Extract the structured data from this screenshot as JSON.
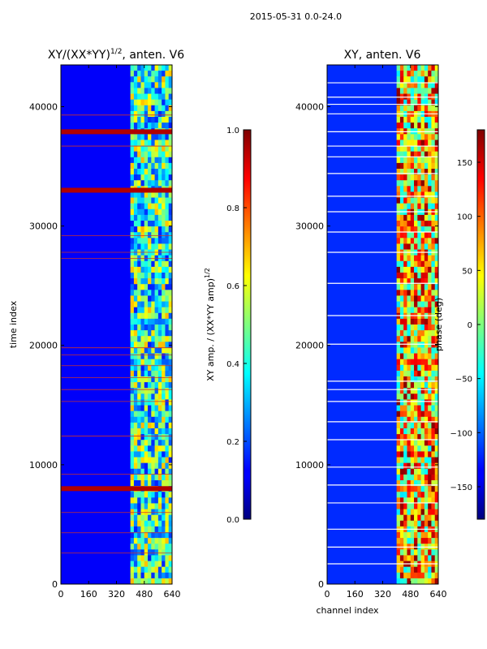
{
  "figure": {
    "suptitle": "2015-05-31 0.0-24.0"
  },
  "chart_data": [
    {
      "type": "heatmap",
      "title_main": "XY/(XX*YY)",
      "title_sup": "1/2",
      "title_tail": ", anten. V6",
      "ylabel": "time index",
      "xlabel": "",
      "xlim": [
        0,
        640
      ],
      "ylim": [
        0,
        43500
      ],
      "xticks": [
        "0",
        "160",
        "320",
        "480",
        "640"
      ],
      "xtick_values": [
        0,
        160,
        320,
        480,
        640
      ],
      "yticks": [
        "0",
        "10000",
        "20000",
        "30000",
        "40000"
      ],
      "ytick_values": [
        0,
        10000,
        20000,
        30000,
        40000
      ],
      "colormap": "jet",
      "colorbar": {
        "label_main": "XY amp. / (XX*YY amp)",
        "label_sup": "1/2",
        "range": [
          0,
          1
        ],
        "ticks": [
          "0.0",
          "0.2",
          "0.4",
          "0.6",
          "0.8",
          "1.0"
        ],
        "tick_values": [
          0,
          0.2,
          0.4,
          0.6,
          0.8,
          1.0
        ]
      },
      "background_value": 0.12,
      "bright_channel_range": [
        400,
        640
      ],
      "flagged_rows": [
        37900,
        33000,
        8000
      ],
      "thin_lines": [
        39300,
        36700,
        29200,
        27800,
        27300,
        19800,
        19200,
        18300,
        17300,
        16300,
        15300,
        12400,
        9200,
        6000,
        4300,
        2600
      ]
    },
    {
      "type": "heatmap",
      "title": "XY, anten. V6",
      "ylabel": "",
      "xlabel": "channel index",
      "xlim": [
        0,
        640
      ],
      "ylim": [
        0,
        43500
      ],
      "xticks": [
        "0",
        "160",
        "320",
        "480",
        "640"
      ],
      "xtick_values": [
        0,
        160,
        320,
        480,
        640
      ],
      "yticks": [
        "0",
        "10000",
        "20000",
        "30000",
        "40000"
      ],
      "ytick_values": [
        0,
        10000,
        20000,
        30000,
        40000
      ],
      "colormap": "jet",
      "colorbar": {
        "label": "phase (deg)",
        "range": [
          -180,
          180
        ],
        "ticks": [
          "−150",
          "−100",
          "−50",
          "0",
          "50",
          "100",
          "150"
        ],
        "tick_values": [
          -150,
          -100,
          -50,
          0,
          50,
          100,
          150
        ]
      },
      "background_value": -120,
      "bright_channel_range": [
        400,
        640
      ],
      "white_lines": [
        42000,
        40800,
        40200,
        39400,
        37900,
        36700,
        35800,
        34400,
        32500,
        31200,
        29500,
        27800,
        25200,
        22500,
        20100,
        17000,
        16300,
        15300,
        13600,
        12100,
        9800,
        8300,
        6800,
        4600,
        3100,
        1700
      ]
    }
  ]
}
